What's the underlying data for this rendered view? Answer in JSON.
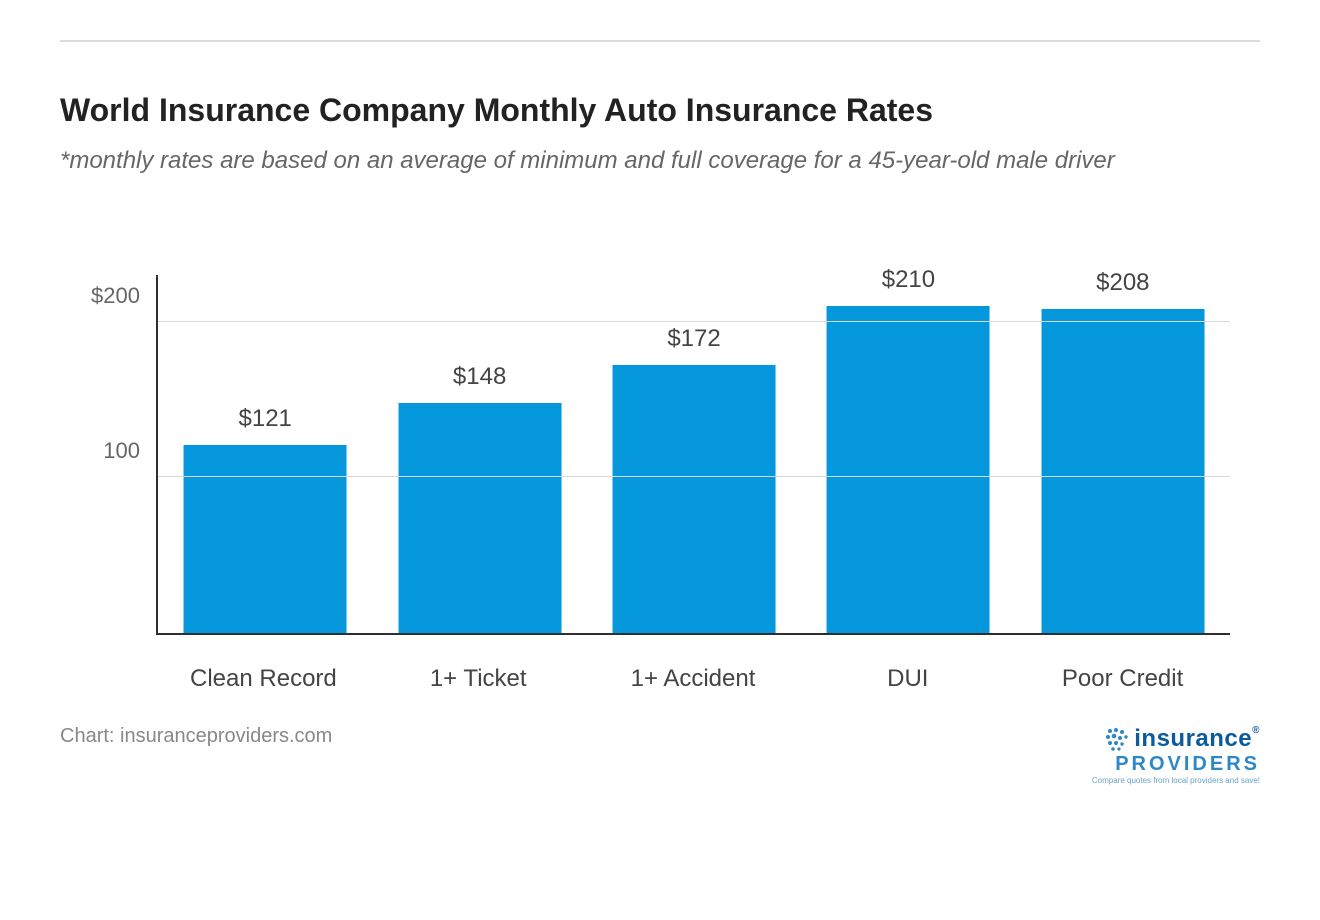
{
  "title": "World Insurance Company Monthly Auto Insurance Rates",
  "subtitle": "*monthly rates are based on an average of minimum and full coverage for a 45-year-old male driver",
  "credit": "Chart: insuranceproviders.com",
  "brand": {
    "line1_prefix": "insur",
    "line1_suffix": "ance",
    "line2": "PROVIDERS",
    "tagline": "Compare quotes from local providers and save!",
    "dot_color": "#2e88c7",
    "text_color_dark": "#0a5c9c",
    "text_color_light": "#2e88c7"
  },
  "chart": {
    "type": "bar",
    "categories": [
      "Clean Record",
      "1+ Ticket",
      "1+ Accident",
      "DUI",
      "Poor Credit"
    ],
    "values": [
      121,
      148,
      172,
      210,
      208
    ],
    "value_labels": [
      "$121",
      "$148",
      "$172",
      "$210",
      "$208"
    ],
    "bar_color": "#0597dc",
    "background_color": "#ffffff",
    "axis_color": "#2f2f2f",
    "grid_color": "#d8d8d8",
    "ymin": 0,
    "ymax": 230,
    "yticks": [
      {
        "value": 100,
        "label": "100"
      },
      {
        "value": 200,
        "label": "$200"
      }
    ],
    "bar_width_pct": 76,
    "title_fontsize": 32,
    "subtitle_fontsize": 24,
    "label_fontsize": 24,
    "tick_fontsize": 22,
    "value_fontsize": 24,
    "credit_fontsize": 20
  }
}
